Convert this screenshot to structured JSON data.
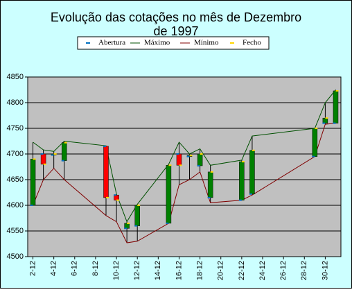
{
  "chart_data": {
    "type": "stock",
    "title": "Evolução das cotações no mês de Dezembro de 1997",
    "x": [
      "2-12",
      "3-12",
      "4-12",
      "5-12",
      "9-12",
      "10-12",
      "11-12",
      "12-12",
      "15-12",
      "16-12",
      "17-12",
      "18-12",
      "19-12",
      "22-12",
      "23-12",
      "29-12",
      "30-12",
      "31-12"
    ],
    "series": [
      {
        "name": "Abertura",
        "color": "#0070c0",
        "values": [
          4600,
          4700,
          4698,
          4687,
          4715,
          4620,
          4555,
          4560,
          4565,
          4700,
          4695,
          4677,
          4615,
          4610,
          4622,
          4695,
          4760,
          4760
        ]
      },
      {
        "name": "Máximo",
        "color": "#005000",
        "values": [
          4723,
          4708,
          4705,
          4725,
          4716,
          4622,
          4568,
          4602,
          4680,
          4723,
          4700,
          4710,
          4678,
          4688,
          4735,
          4750,
          4800,
          4825
        ]
      },
      {
        "name": "Mínimo",
        "color": "#800000",
        "values": [
          4600,
          4650,
          4672,
          4650,
          4580,
          4568,
          4527,
          4530,
          4565,
          4640,
          4650,
          4665,
          4605,
          4610,
          4620,
          4695,
          4758,
          4760
        ]
      },
      {
        "name": "Fecho",
        "color": "#ffd700",
        "values": [
          4690,
          4680,
          4700,
          4722,
          4615,
          4610,
          4565,
          4600,
          4678,
          4678,
          4697,
          4700,
          4665,
          4685,
          4707,
          4750,
          4770,
          4823
        ]
      }
    ],
    "up_color": "#008000",
    "down_color": "#ff0000",
    "xlim": [
      "1-12",
      "31-12"
    ],
    "xticks": [
      "2-12",
      "4-12",
      "6-12",
      "8-12",
      "10-12",
      "12-12",
      "14-12",
      "16-12",
      "18-12",
      "20-12",
      "22-12",
      "24-12",
      "26-12",
      "28-12",
      "30-12"
    ],
    "ylim": [
      4500,
      4850
    ],
    "yticks": [
      4500,
      4550,
      4600,
      4650,
      4700,
      4750,
      4800,
      4850
    ],
    "grid": true,
    "legend": "top"
  }
}
